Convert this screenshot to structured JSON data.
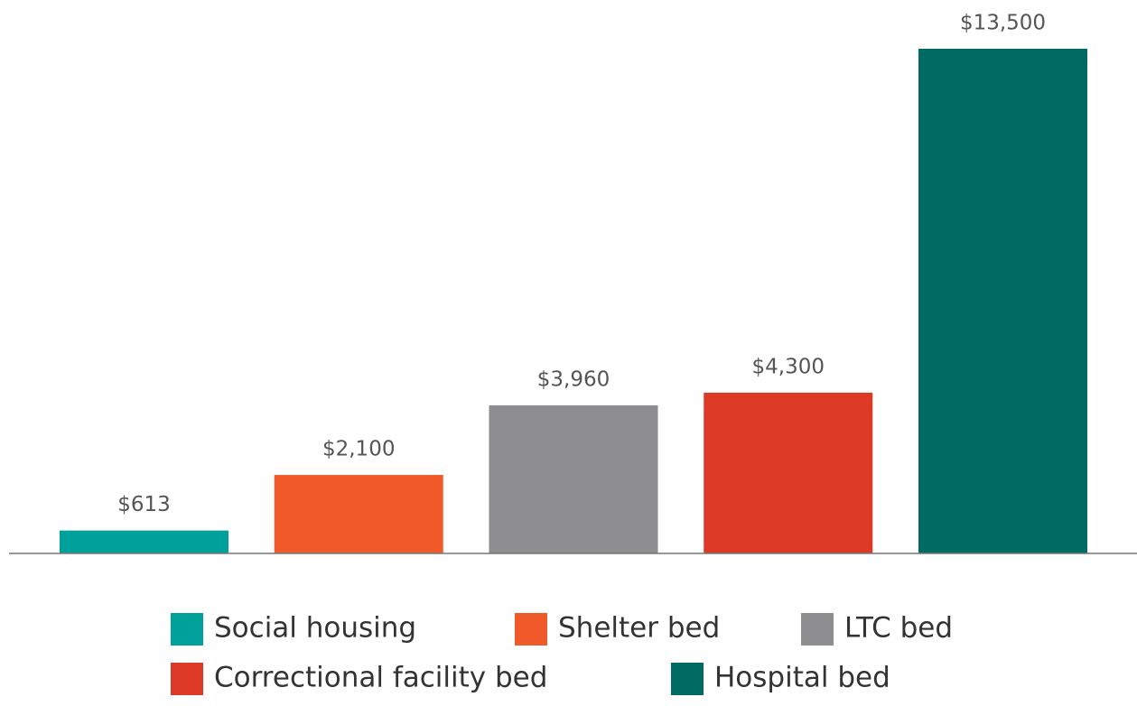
{
  "chart_data": {
    "type": "bar",
    "categories": [
      "Social housing",
      "Shelter bed",
      "LTC bed",
      "Correctional facility bed",
      "Hospital bed"
    ],
    "values": [
      613,
      2100,
      3960,
      4300,
      13500
    ],
    "value_labels": [
      "$613",
      "$2,100",
      "$3,960",
      "$4,300",
      "$13,500"
    ],
    "colors": [
      "#00a19a",
      "#f05a2a",
      "#8e8e90",
      "#dc3a27",
      "#006b63"
    ],
    "ylim": [
      0,
      13500
    ]
  }
}
